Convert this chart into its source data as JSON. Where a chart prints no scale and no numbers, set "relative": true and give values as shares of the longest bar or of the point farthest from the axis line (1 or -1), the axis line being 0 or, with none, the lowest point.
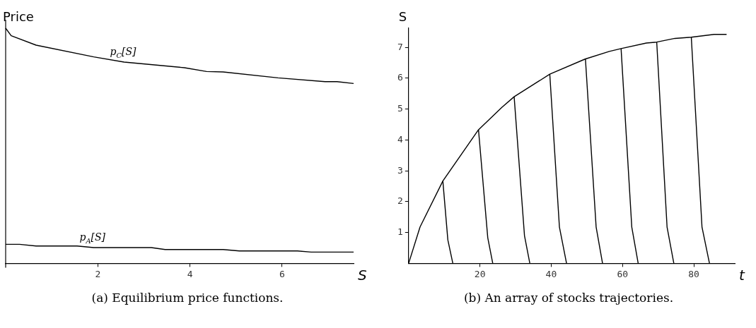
{
  "chart_data": [
    {
      "type": "line",
      "ylabel": "Price",
      "xlabel": "S",
      "relative": true,
      "marker": "none",
      "tick_labels": "x",
      "xlim": [
        0,
        7.55
      ],
      "xticks": [
        2,
        4,
        6
      ],
      "annotations": [
        "(a) Equilibrium price functions."
      ],
      "series": [
        {
          "name": "p$_{C}$[S]",
          "color": "#000000",
          "x": [
            0,
            0.12,
            0.66,
            1.91,
            2.57,
            3.88,
            4.36,
            4.72,
            5.91,
            6.93,
            7.19,
            7.55
          ],
          "values": [
            1,
            0.968,
            0.928,
            0.878,
            0.856,
            0.832,
            0.816,
            0.814,
            0.789,
            0.773,
            0.773,
            0.765
          ]
        },
        {
          "name": "p$_{A}$[S]",
          "color": "#000000",
          "x": [
            0,
            0.3,
            0.66,
            1.55,
            1.91,
            3.16,
            3.46,
            4.72,
            5.07,
            6.33,
            6.63,
            7.55
          ],
          "values": [
            0.081,
            0.081,
            0.074,
            0.074,
            0.067,
            0.067,
            0.059,
            0.059,
            0.053,
            0.053,
            0.048,
            0.048
          ]
        }
      ]
    },
    {
      "type": "line",
      "ylabel": "S",
      "xlabel": "t",
      "marker": "none",
      "xlim": [
        0,
        91.5
      ],
      "xticks": [
        20,
        40,
        60,
        80
      ],
      "ylim": [
        0,
        7.62
      ],
      "yticks": [
        1,
        2,
        3,
        4,
        5,
        6,
        7
      ],
      "annotations": [
        "(b) An array of stocks trajectories."
      ],
      "series": [
        {
          "color": "#000000",
          "x": [
            0,
            3.2,
            9.6,
            19.6,
            26.2,
            29.6,
            39.6,
            49.5,
            56.3,
            59.6,
            66.7,
            69.6,
            74.7,
            79.3,
            85.7,
            89.2
          ],
          "values": [
            0,
            1.18,
            2.67,
            4.33,
            5.06,
            5.4,
            6.13,
            6.62,
            6.87,
            6.96,
            7.14,
            7.17,
            7.29,
            7.33,
            7.42,
            7.42
          ]
        },
        {
          "color": "#000000",
          "x": [
            9.6,
            11,
            12.4
          ],
          "values": [
            2.67,
            0.76,
            0
          ]
        },
        {
          "color": "#000000",
          "x": [
            19.6,
            22.2,
            23.6
          ],
          "values": [
            4.33,
            0.83,
            0
          ]
        },
        {
          "color": "#000000",
          "x": [
            29.6,
            32.5,
            34
          ],
          "values": [
            5.4,
            0.9,
            0
          ]
        },
        {
          "color": "#000000",
          "x": [
            39.6,
            42.3,
            44.3
          ],
          "values": [
            6.13,
            1.18,
            0
          ]
        },
        {
          "color": "#000000",
          "x": [
            49.6,
            52.6,
            54.4
          ],
          "values": [
            6.62,
            1.18,
            0
          ]
        },
        {
          "color": "#000000",
          "x": [
            59.6,
            62.6,
            64.4
          ],
          "values": [
            6.96,
            1.18,
            0
          ]
        },
        {
          "color": "#000000",
          "x": [
            69.6,
            72.5,
            74.4
          ],
          "values": [
            7.17,
            1.18,
            0
          ]
        },
        {
          "color": "#000000",
          "x": [
            79.3,
            82.3,
            84.4
          ],
          "values": [
            7.33,
            1.18,
            0
          ]
        }
      ]
    }
  ]
}
